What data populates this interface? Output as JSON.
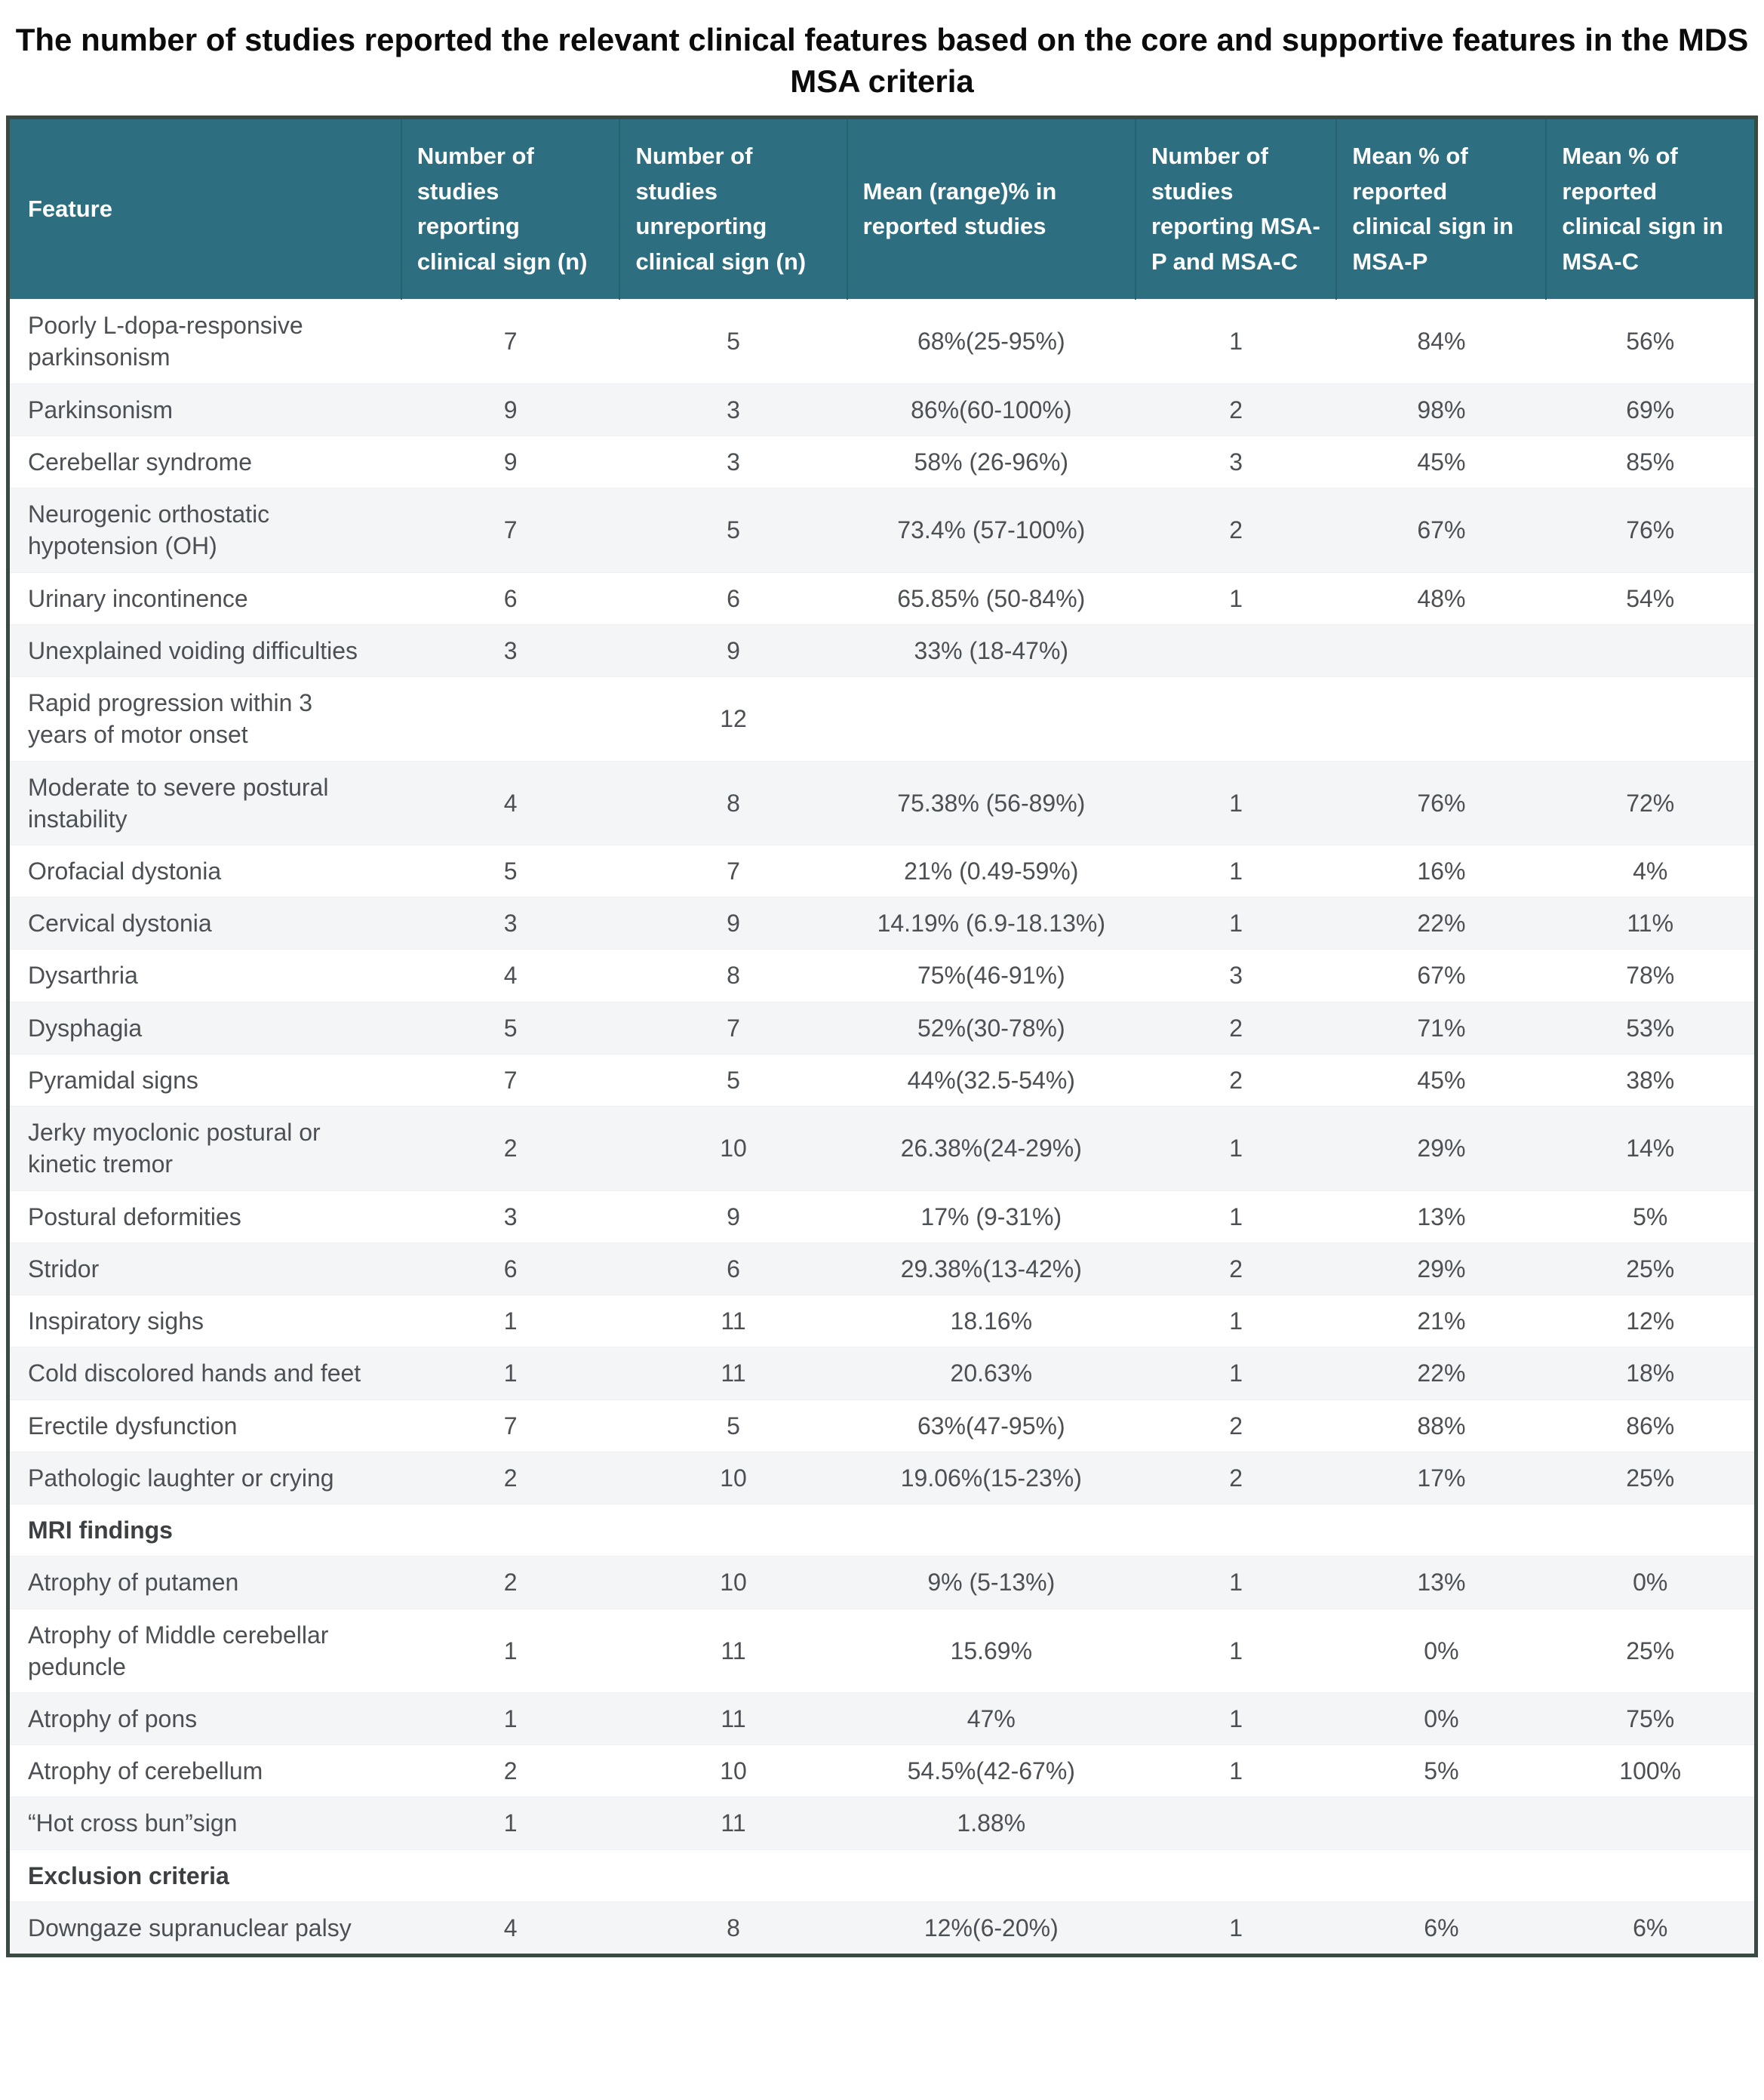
{
  "page_title": "The number of studies reported the relevant clinical features based on the core and supportive features in the MDS MSA criteria",
  "colors": {
    "header_bg": "#2D6F80",
    "outer_border": "#3A4A42",
    "row_stripe": "#F3F5F7",
    "header_text": "#FFFFFF",
    "body_text": "#4C5054"
  },
  "table": {
    "column_headers": [
      "Feature",
      "Number of studies reporting clinical sign (n)",
      "Number of studies unreporting clinical sign (n)",
      "Mean (range)% in reported studies",
      "Number of studies reporting MSA-P and MSA-C",
      "Mean % of reported clinical sign in MSA-P",
      "Mean % of reported clinical sign in MSA-C"
    ],
    "rows": [
      {
        "feature": "Poorly L-dopa-responsive parkinsonism",
        "section": false,
        "cells": [
          "7",
          "5",
          "68%(25-95%)",
          "1",
          "84%",
          "56%"
        ]
      },
      {
        "feature": "Parkinsonism",
        "section": false,
        "cells": [
          "9",
          "3",
          "86%(60-100%)",
          "2",
          "98%",
          "69%"
        ]
      },
      {
        "feature": "Cerebellar syndrome",
        "section": false,
        "cells": [
          "9",
          "3",
          "58% (26-96%)",
          "3",
          "45%",
          "85%"
        ]
      },
      {
        "feature": "Neurogenic orthostatic hypotension (OH)",
        "section": false,
        "cells": [
          "7",
          "5",
          "73.4% (57-100%)",
          "2",
          "67%",
          "76%"
        ]
      },
      {
        "feature": "Urinary incontinence",
        "section": false,
        "cells": [
          "6",
          "6",
          "65.85% (50-84%)",
          "1",
          "48%",
          "54%"
        ]
      },
      {
        "feature": "Unexplained voiding difficulties",
        "section": false,
        "cells": [
          "3",
          "9",
          "33% (18-47%)",
          "",
          "",
          ""
        ]
      },
      {
        "feature": "Rapid progression within 3 years of motor onset",
        "section": false,
        "cells": [
          "",
          "12",
          "",
          "",
          "",
          ""
        ]
      },
      {
        "feature": "Moderate to severe postural instability",
        "section": false,
        "cells": [
          "4",
          "8",
          "75.38% (56-89%)",
          "1",
          "76%",
          "72%"
        ]
      },
      {
        "feature": "Orofacial dystonia",
        "section": false,
        "cells": [
          "5",
          "7",
          "21% (0.49-59%)",
          "1",
          "16%",
          "4%"
        ]
      },
      {
        "feature": "Cervical dystonia",
        "section": false,
        "cells": [
          "3",
          "9",
          "14.19% (6.9-18.13%)",
          "1",
          "22%",
          "11%"
        ]
      },
      {
        "feature": "Dysarthria",
        "section": false,
        "cells": [
          "4",
          "8",
          "75%(46-91%)",
          "3",
          "67%",
          "78%"
        ]
      },
      {
        "feature": "Dysphagia",
        "section": false,
        "cells": [
          "5",
          "7",
          "52%(30-78%)",
          "2",
          "71%",
          "53%"
        ]
      },
      {
        "feature": "Pyramidal signs",
        "section": false,
        "cells": [
          "7",
          "5",
          "44%(32.5-54%)",
          "2",
          "45%",
          "38%"
        ]
      },
      {
        "feature": "Jerky myoclonic postural or kinetic tremor",
        "section": false,
        "cells": [
          "2",
          "10",
          "26.38%(24-29%)",
          "1",
          "29%",
          "14%"
        ]
      },
      {
        "feature": "Postural deformities",
        "section": false,
        "cells": [
          "3",
          "9",
          "17% (9-31%)",
          "1",
          "13%",
          "5%"
        ]
      },
      {
        "feature": "Stridor",
        "section": false,
        "cells": [
          "6",
          "6",
          "29.38%(13-42%)",
          "2",
          "29%",
          "25%"
        ]
      },
      {
        "feature": "Inspiratory sighs",
        "section": false,
        "cells": [
          "1",
          "11",
          "18.16%",
          "1",
          "21%",
          "12%"
        ]
      },
      {
        "feature": "Cold discolored hands and feet",
        "section": false,
        "cells": [
          "1",
          "11",
          "20.63%",
          "1",
          "22%",
          "18%"
        ]
      },
      {
        "feature": "Erectile dysfunction",
        "section": false,
        "cells": [
          "7",
          "5",
          "63%(47-95%)",
          "2",
          "88%",
          "86%"
        ]
      },
      {
        "feature": "Pathologic laughter or crying",
        "section": false,
        "cells": [
          "2",
          "10",
          "19.06%(15-23%)",
          "2",
          "17%",
          "25%"
        ]
      },
      {
        "feature": "MRI findings",
        "section": true,
        "cells": [
          "",
          "",
          "",
          "",
          "",
          ""
        ]
      },
      {
        "feature": "Atrophy of putamen",
        "section": false,
        "cells": [
          "2",
          "10",
          "9% (5-13%)",
          "1",
          "13%",
          "0%"
        ]
      },
      {
        "feature": "Atrophy of  Middle cerebellar peduncle",
        "section": false,
        "cells": [
          "1",
          "11",
          "15.69%",
          "1",
          "0%",
          "25%"
        ]
      },
      {
        "feature": "Atrophy of pons",
        "section": false,
        "cells": [
          "1",
          "11",
          "47%",
          "1",
          "0%",
          "75%"
        ]
      },
      {
        "feature": "Atrophy of cerebellum",
        "section": false,
        "cells": [
          "2",
          "10",
          "54.5%(42-67%)",
          "1",
          "5%",
          "100%"
        ]
      },
      {
        "feature": "“Hot cross bun”sign",
        "section": false,
        "cells": [
          "1",
          "11",
          "1.88%",
          "",
          "",
          ""
        ]
      },
      {
        "feature": "Exclusion criteria",
        "section": true,
        "cells": [
          "",
          "",
          "",
          "",
          "",
          ""
        ]
      },
      {
        "feature": "Downgaze supranuclear palsy",
        "section": false,
        "cells": [
          "4",
          "8",
          "12%(6-20%)",
          "1",
          "6%",
          "6%"
        ]
      }
    ]
  }
}
